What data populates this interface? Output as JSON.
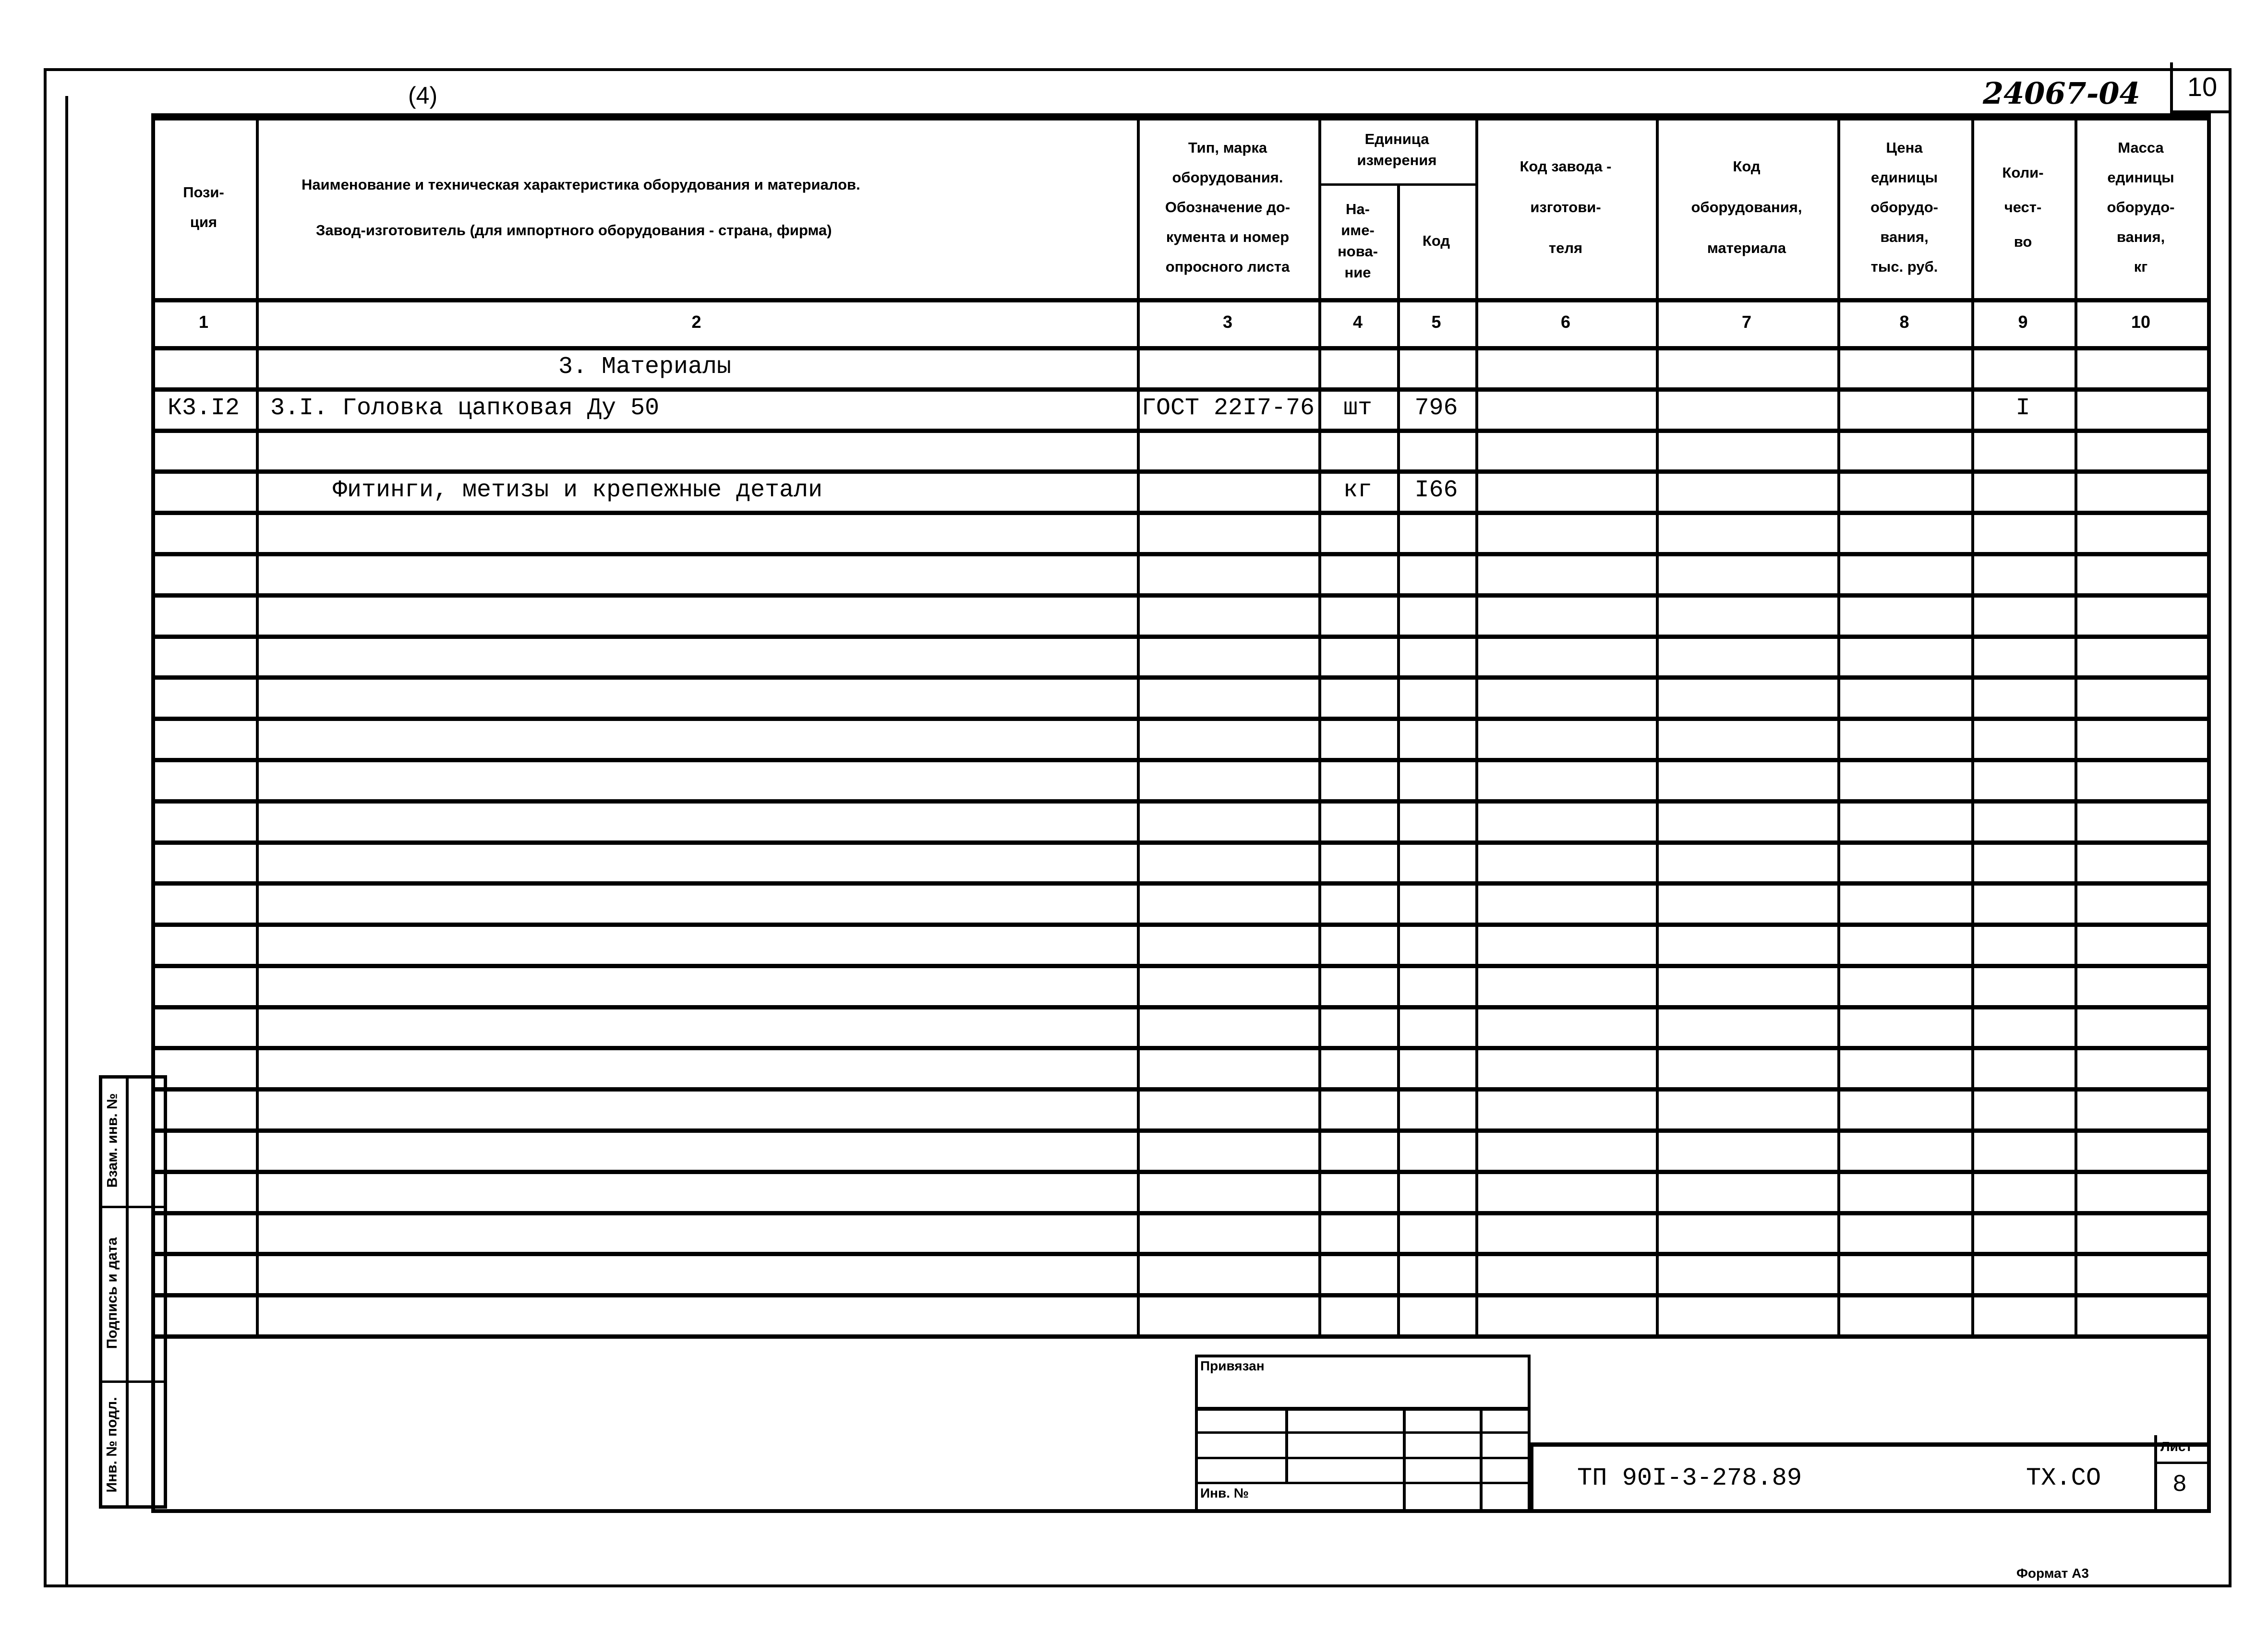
{
  "sheet": {
    "corner_mark": "(4)",
    "handwritten_code": "24067-04",
    "page_box": "10",
    "format_label": "Формат А3"
  },
  "table": {
    "headers": {
      "col1": [
        "Пози-",
        "ция"
      ],
      "col2": [
        "Наименование и техническая характеристика  оборудования и материалов.",
        "Завод-изготовитель  (для импортного оборудования -  страна, фирма)"
      ],
      "col3": [
        "Тип,      марка",
        "оборудования.",
        "Обозначение  до-",
        "кумента  и  номер",
        "опросного листа"
      ],
      "unit_group": [
        "Единица",
        "измерения"
      ],
      "col4": [
        "На-",
        "име-",
        "нова-",
        "ние"
      ],
      "col5": [
        "Код"
      ],
      "col6": [
        "Код   завода -",
        "изготови-",
        "теля"
      ],
      "col7": [
        "Код",
        "оборудования,",
        "материала"
      ],
      "col8": [
        "Цена",
        "единицы",
        "оборудо-",
        "вания,",
        "тыс. руб."
      ],
      "col9": [
        "Коли-",
        "чест-",
        "во"
      ],
      "col10": [
        "Масса",
        "единицы",
        "оборудо-",
        "вания,",
        "кг"
      ]
    },
    "column_numbers": [
      "1",
      "2",
      "3",
      "4",
      "5",
      "6",
      "7",
      "8",
      "9",
      "10"
    ],
    "rows": [
      {
        "pos": "",
        "name": "3. Материалы",
        "doc": "",
        "unit": "",
        "code": "",
        "qty": "",
        "indent": "center"
      },
      {
        "pos": "К3.I2",
        "name": "3.I. Головка цапковая Ду 50",
        "doc": "ГОСТ 22I7-76",
        "unit": "шт",
        "code": "796",
        "qty": "I",
        "indent": "none"
      },
      {
        "pos": "",
        "name": "",
        "doc": "",
        "unit": "",
        "code": "",
        "qty": ""
      },
      {
        "pos": "",
        "name": "Фитинги, метизы и крепежные детали",
        "doc": "",
        "unit": "кг",
        "code": "I66",
        "qty": "",
        "indent": "small"
      },
      {},
      {},
      {},
      {},
      {},
      {},
      {},
      {},
      {},
      {},
      {},
      {},
      {},
      {},
      {},
      {},
      {},
      {},
      {},
      {}
    ]
  },
  "side_stamp": {
    "labels": [
      "Взам. инв. №",
      "Подпись и дата",
      "Инв. № подл."
    ]
  },
  "title_block": {
    "linked_label": "Привязан",
    "inv_label": "Инв. №",
    "document_code": "ТП 90I-3-278.89",
    "section_code": "ТХ.СО",
    "sheet_label": "Лист",
    "sheet_number": "8"
  }
}
